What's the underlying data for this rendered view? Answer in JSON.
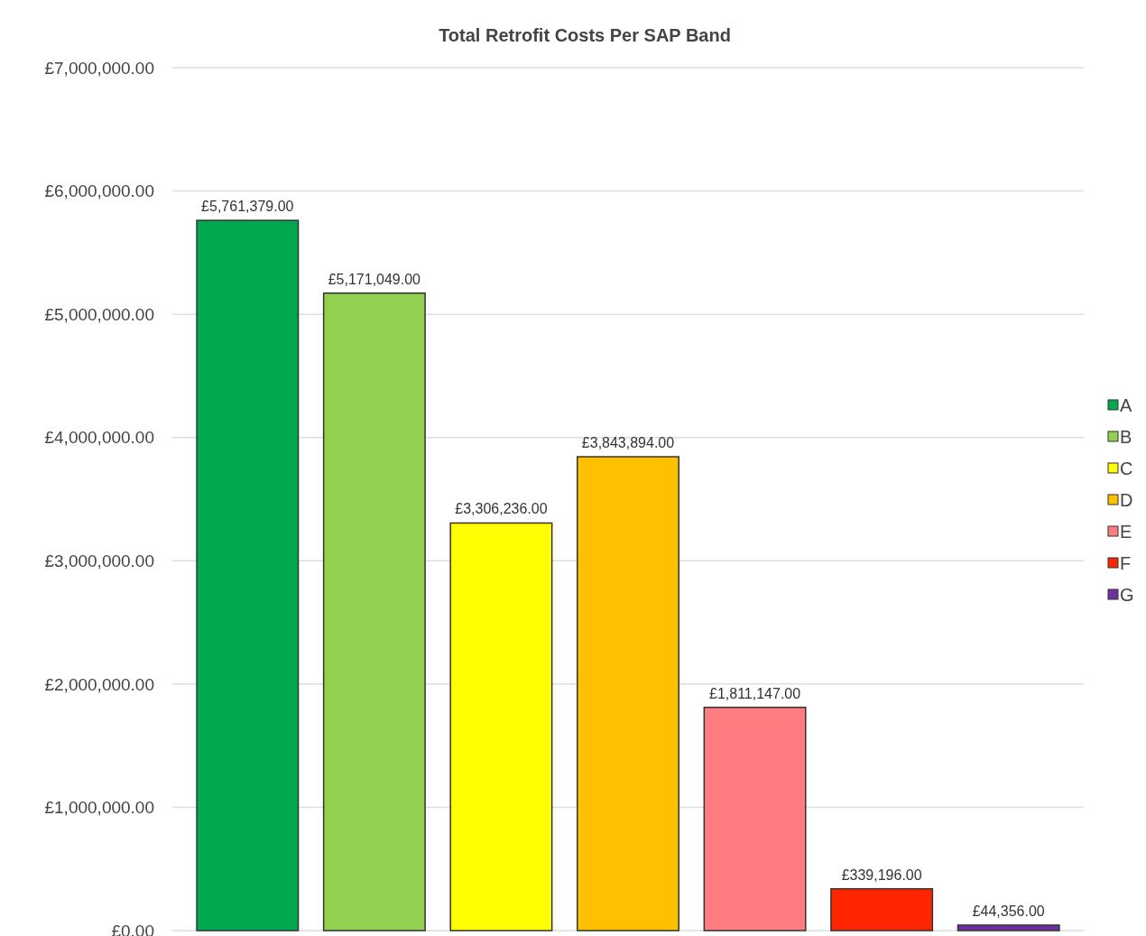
{
  "chart_data": {
    "type": "bar",
    "title": "Total Retrofit Costs Per SAP Band",
    "categories": [
      null,
      null,
      null,
      null,
      null,
      null,
      null
    ],
    "series": [
      {
        "name": "A",
        "color": "#00a94f",
        "values": [
          5761379,
          null,
          null,
          null,
          null,
          null,
          null
        ],
        "value_labels": [
          "£5,761,379.00",
          null,
          null,
          null,
          null,
          null,
          null
        ]
      },
      {
        "name": "B",
        "color": "#92d050",
        "values": [
          null,
          5171049,
          null,
          null,
          null,
          null,
          null
        ],
        "value_labels": [
          null,
          "£5,171,049.00",
          null,
          null,
          null,
          null,
          null
        ]
      },
      {
        "name": "C",
        "color": "#ffff00",
        "values": [
          null,
          null,
          3306236,
          null,
          null,
          null,
          null
        ],
        "value_labels": [
          null,
          null,
          "£3,306,236.00",
          null,
          null,
          null,
          null
        ]
      },
      {
        "name": "D",
        "color": "#ffc000",
        "values": [
          null,
          null,
          null,
          3843894,
          null,
          null,
          null
        ],
        "value_labels": [
          null,
          null,
          null,
          "£3,843,894.00",
          null,
          null,
          null
        ]
      },
      {
        "name": "E",
        "color": "#ff7c80",
        "values": [
          null,
          null,
          null,
          null,
          1811147,
          null,
          null
        ],
        "value_labels": [
          null,
          null,
          null,
          null,
          "£1,811,147.00",
          null,
          null
        ]
      },
      {
        "name": "F",
        "color": "#ff2500",
        "values": [
          null,
          null,
          null,
          null,
          null,
          339196,
          null
        ],
        "value_labels": [
          null,
          null,
          null,
          null,
          null,
          "£339,196.00",
          null
        ]
      },
      {
        "name": "G",
        "color": "#7030a0",
        "values": [
          null,
          null,
          null,
          null,
          null,
          null,
          44356
        ],
        "value_labels": [
          null,
          null,
          null,
          null,
          null,
          null,
          "£44,356.00"
        ]
      }
    ],
    "ylim": [
      0,
      7000000
    ],
    "yticks": [
      {
        "value": 0,
        "label": "£0.00"
      },
      {
        "value": 1000000,
        "label": "£1,000,000.00"
      },
      {
        "value": 2000000,
        "label": "£2,000,000.00"
      },
      {
        "value": 3000000,
        "label": "£3,000,000.00"
      },
      {
        "value": 4000000,
        "label": "£4,000,000.00"
      },
      {
        "value": 5000000,
        "label": "£5,000,000.00"
      },
      {
        "value": 6000000,
        "label": "£6,000,000.00"
      },
      {
        "value": 7000000,
        "label": "£7,000,000.00"
      }
    ],
    "grid": "y",
    "legend": "right"
  }
}
